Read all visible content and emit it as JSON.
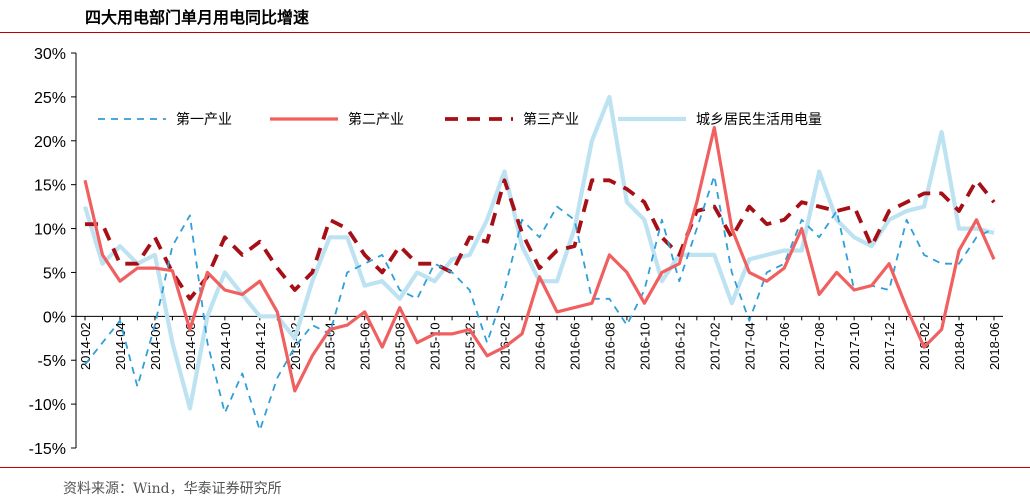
{
  "title": "四大用电部门单月用电同比增速",
  "source": "资料来源：Wind，华泰证券研究所",
  "chart_data": {
    "type": "line",
    "title": "四大用电部门单月用电同比增速",
    "ylim": [
      -15,
      30
    ],
    "ytick_labels": [
      "30%",
      "25%",
      "20%",
      "15%",
      "10%",
      "5%",
      "0%",
      "-5%",
      "-10%",
      "-15%"
    ],
    "x_tick_labels": [
      "2014-02",
      "2014-04",
      "2014-06",
      "2014-08",
      "2014-10",
      "2014-12",
      "2015-02",
      "2015-04",
      "2015-06",
      "2015-08",
      "2015-10",
      "2015-12",
      "2016-02",
      "2016-04",
      "2016-06",
      "2016-08",
      "2016-10",
      "2016-12",
      "2017-02",
      "2017-04",
      "2017-06",
      "2017-08",
      "2017-10",
      "2017-12",
      "2018-02",
      "2018-04",
      "2018-06"
    ],
    "x": [
      "2014-02",
      "2014-03",
      "2014-04",
      "2014-05",
      "2014-06",
      "2014-07",
      "2014-08",
      "2014-09",
      "2014-10",
      "2014-11",
      "2014-12",
      "2015-01",
      "2015-02",
      "2015-03",
      "2015-04",
      "2015-05",
      "2015-06",
      "2015-07",
      "2015-08",
      "2015-09",
      "2015-10",
      "2015-11",
      "2015-12",
      "2016-01",
      "2016-02",
      "2016-03",
      "2016-04",
      "2016-05",
      "2016-06",
      "2016-07",
      "2016-08",
      "2016-09",
      "2016-10",
      "2016-11",
      "2016-12",
      "2017-01",
      "2017-02",
      "2017-03",
      "2017-04",
      "2017-05",
      "2017-06",
      "2017-07",
      "2017-08",
      "2017-09",
      "2017-10",
      "2017-11",
      "2017-12",
      "2018-01",
      "2018-02",
      "2018-03",
      "2018-04",
      "2018-05",
      "2018-06"
    ],
    "series": [
      {
        "name": "第一产业",
        "color": "#2e9fd8",
        "style": "dashed-thin",
        "values": [
          -5.5,
          -3,
          -0.5,
          -8,
          -1,
          8,
          11.5,
          -3,
          -11,
          -6.5,
          -13,
          -7,
          -3.5,
          -1,
          -2,
          5,
          6,
          7,
          3,
          2,
          6,
          5,
          3,
          -3,
          3,
          11,
          9,
          12.5,
          11,
          2,
          2,
          -1,
          3,
          11,
          4,
          10,
          16,
          5,
          -0.5,
          5,
          6,
          11,
          9,
          12,
          3,
          3.5,
          3,
          11,
          7,
          6,
          6,
          9,
          10
        ]
      },
      {
        "name": "第二产业",
        "color": "#f06060",
        "style": "solid",
        "values": [
          15.5,
          7,
          4,
          5.5,
          5.5,
          5.2,
          -1.5,
          5,
          3,
          2.5,
          4,
          0.5,
          -8.5,
          -4.5,
          -1.5,
          -1,
          0.5,
          -3.5,
          1,
          -3,
          -2,
          -2,
          -1.5,
          -4.5,
          -3.5,
          -2,
          4.5,
          0.5,
          1,
          1.5,
          7,
          5,
          1.5,
          5,
          6,
          13,
          21.5,
          10,
          5,
          4,
          5.5,
          10,
          2.5,
          5,
          3,
          3.5,
          6,
          1,
          -3.5,
          -1.5,
          7.5,
          11,
          6.5
        ]
      },
      {
        "name": "第三产业",
        "color": "#a50f15",
        "style": "dashed-thick",
        "values": [
          10.5,
          10.5,
          6,
          6,
          9,
          5,
          2,
          4.5,
          9,
          7,
          8.5,
          5.5,
          3,
          5,
          11,
          10,
          7,
          5,
          8,
          6,
          6,
          5,
          9,
          8.5,
          15.5,
          9.5,
          5.5,
          7.5,
          8,
          15.5,
          15.5,
          14.5,
          13,
          9,
          7,
          12,
          12.5,
          9,
          12.5,
          10.5,
          11,
          13,
          12.5,
          12,
          12.5,
          8,
          12,
          13,
          14,
          14,
          12,
          15.5,
          13
        ]
      },
      {
        "name": "城乡居民生活用电量",
        "color": "#bde3f3",
        "style": "solid-thick",
        "values": [
          12.5,
          6,
          8,
          6,
          7,
          -3,
          -10.5,
          0,
          5,
          2.5,
          0,
          0,
          -2.5,
          4,
          9,
          9,
          3.5,
          4,
          2,
          5,
          4,
          6.5,
          7,
          11,
          16.5,
          8,
          4,
          4,
          10,
          20,
          25,
          13,
          11,
          4,
          7,
          7,
          7,
          1.5,
          6.5,
          7,
          7.5,
          7.5,
          16.5,
          11,
          9,
          8,
          11,
          12,
          12.5,
          21,
          10,
          10,
          9.5
        ]
      }
    ]
  }
}
